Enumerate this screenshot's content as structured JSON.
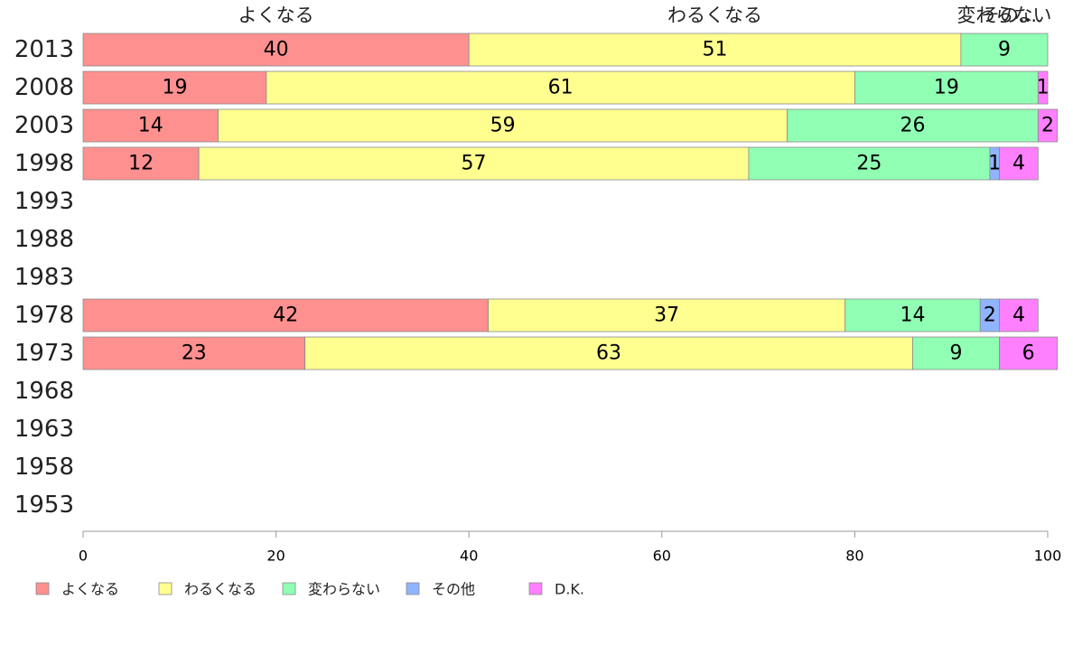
{
  "chart_data": {
    "type": "bar",
    "orientation": "horizontal",
    "stacked": true,
    "categories": [
      "2013",
      "2008",
      "2003",
      "1998",
      "1993",
      "1988",
      "1983",
      "1978",
      "1973",
      "1968",
      "1963",
      "1958",
      "1953"
    ],
    "series": [
      {
        "name": "よくなる",
        "color": "#ff9090",
        "values": [
          40,
          19,
          14,
          12,
          null,
          null,
          null,
          42,
          23,
          null,
          null,
          null,
          null
        ]
      },
      {
        "name": "わるくなる",
        "color": "#ffff90",
        "values": [
          51,
          61,
          59,
          57,
          null,
          null,
          null,
          37,
          63,
          null,
          null,
          null,
          null
        ]
      },
      {
        "name": "変わらない",
        "color": "#90ffb4",
        "values": [
          9,
          19,
          26,
          25,
          null,
          null,
          null,
          14,
          9,
          null,
          null,
          null,
          null
        ]
      },
      {
        "name": "その他",
        "color": "#90b4ff",
        "values": [
          0,
          0,
          0,
          1,
          null,
          null,
          null,
          2,
          0,
          null,
          null,
          null,
          null
        ]
      },
      {
        "name": "D.K.",
        "color": "#ff80ff",
        "values": [
          0,
          1,
          2,
          4,
          null,
          null,
          null,
          4,
          6,
          null,
          null,
          null,
          null
        ]
      }
    ],
    "top_labels": [
      "よくなる",
      "わるくなる",
      "変わらない",
      "その..."
    ],
    "x_ticks": [
      0,
      20,
      40,
      60,
      80,
      100
    ],
    "xlim": [
      0,
      100
    ],
    "legend_position": "bottom-left",
    "title": "",
    "xlabel": "",
    "ylabel": ""
  }
}
